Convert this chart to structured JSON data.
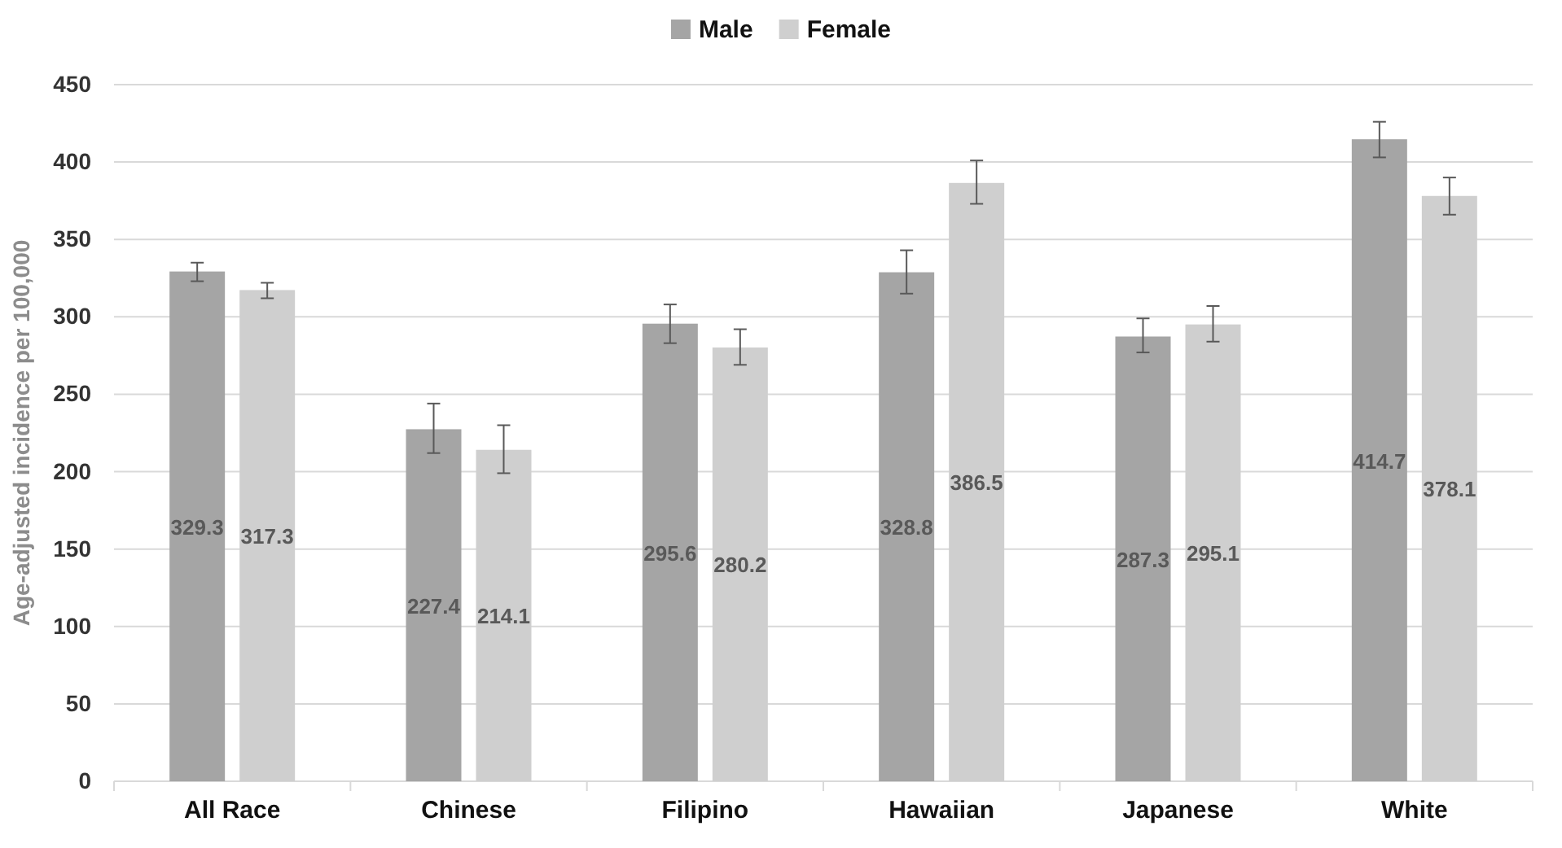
{
  "chart_data": {
    "type": "bar",
    "ylabel": "Age-adjusted incidence per 100,000",
    "categories": [
      "All Race",
      "Chinese",
      "Filipino",
      "Hawaiian",
      "Japanese",
      "White"
    ],
    "series": [
      {
        "name": "Male",
        "color": "#a5a5a5",
        "values": [
          329.3,
          227.4,
          295.6,
          328.8,
          287.3,
          414.7
        ],
        "errors": [
          [
            323,
            335
          ],
          [
            212,
            244
          ],
          [
            283,
            308
          ],
          [
            315,
            343
          ],
          [
            277,
            299
          ],
          [
            403,
            426
          ]
        ]
      },
      {
        "name": "Female",
        "color": "#cfcfcf",
        "values": [
          317.3,
          214.1,
          280.2,
          386.5,
          295.1,
          378.1
        ],
        "errors": [
          [
            312,
            322
          ],
          [
            199,
            230
          ],
          [
            269,
            292
          ],
          [
            373,
            401
          ],
          [
            284,
            307
          ],
          [
            366,
            390
          ]
        ]
      }
    ],
    "ylim": [
      0,
      450
    ],
    "yticks": [
      0,
      50,
      100,
      150,
      200,
      250,
      300,
      350,
      400,
      450
    ],
    "grid": "y",
    "legend": "top",
    "data_labels": true
  }
}
